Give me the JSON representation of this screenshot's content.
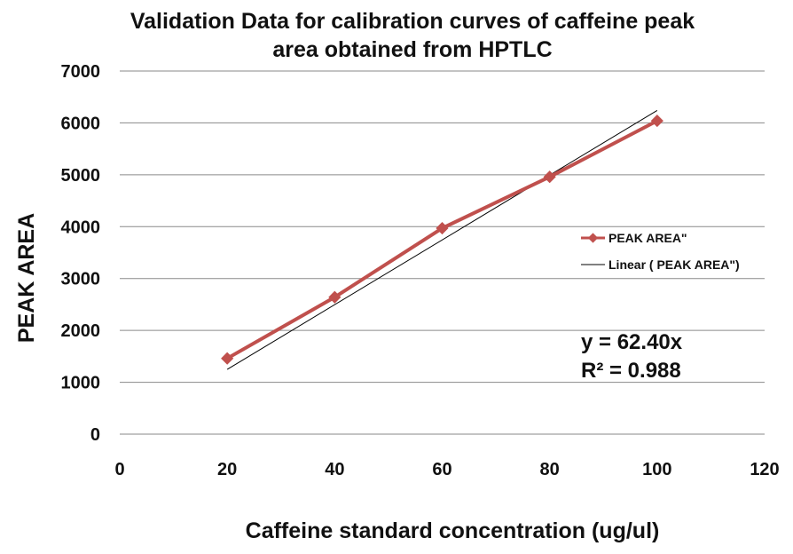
{
  "chart_data": {
    "type": "line",
    "title_lines": [
      "Validation Data for calibration curves of caffeine peak",
      "area obtained from HPTLC"
    ],
    "xlabel": "Caffeine standard concentration (ug/ul)",
    "ylabel": "PEAK AREA",
    "xlim": [
      0,
      120
    ],
    "ylim": [
      0,
      7000
    ],
    "x_ticks": [
      "0",
      "20",
      "40",
      "60",
      "80",
      "100",
      "120"
    ],
    "y_ticks": [
      "0",
      "1000",
      "2000",
      "3000",
      "4000",
      "5000",
      "6000",
      "7000"
    ],
    "grid": "horizontal",
    "legend_position": "right",
    "series": [
      {
        "name": "PEAK AREA\"",
        "color": "#c0504d",
        "marker": "diamond",
        "x": [
          20,
          40,
          60,
          80,
          100
        ],
        "values": [
          1460,
          2640,
          3970,
          4960,
          6040
        ]
      }
    ],
    "trendline": {
      "name": "Linear ( PEAK AREA\")",
      "color": "#000000",
      "type": "linear",
      "slope": 62.4,
      "x_range": [
        20,
        100
      ]
    },
    "annotations": {
      "equation": "y = 62.40x",
      "r_squared": "R² = 0.988"
    }
  }
}
